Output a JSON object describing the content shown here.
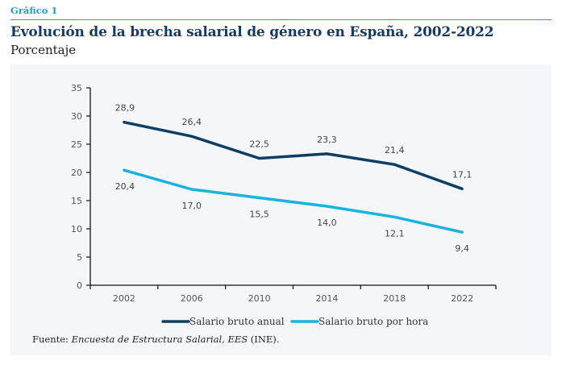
{
  "header": {
    "kicker": "Gráfico 1",
    "title": "Evolución de la brecha salarial de género en España, 2002-2022",
    "subtitle": "Porcentaje"
  },
  "source": {
    "prefix": "Fuente: ",
    "italic": "Encuesta de Estructura Salarial, EES",
    "suffix": " (INE)."
  },
  "colors": {
    "accent": "#1a9fcf",
    "title": "#173a5e",
    "series_annual": "#0d3f63",
    "series_hourly": "#1ab3dd",
    "panel_bg": "#f4f6f9"
  },
  "chart_data": {
    "type": "line",
    "title": "Evolución de la brecha salarial de género en España, 2002-2022",
    "subtitle": "Porcentaje",
    "xlabel": "",
    "ylabel": "",
    "categories": [
      "2002",
      "2006",
      "2010",
      "2014",
      "2018",
      "2022"
    ],
    "ylim": [
      0,
      35
    ],
    "yticks": [
      0,
      5,
      10,
      15,
      20,
      25,
      30,
      35
    ],
    "grid": false,
    "legend_position": "bottom",
    "series": [
      {
        "name": "Salario bruto anual",
        "color": "#0d3f63",
        "values": [
          28.9,
          26.4,
          22.5,
          23.3,
          21.4,
          17.1
        ],
        "labels": [
          "28,9",
          "26,4",
          "22,5",
          "23,3",
          "21,4",
          "17,1"
        ],
        "label_position": "above"
      },
      {
        "name": "Salario bruto por hora",
        "color": "#1ab3dd",
        "values": [
          20.4,
          17.0,
          15.5,
          14.0,
          12.1,
          9.4
        ],
        "labels": [
          "20,4",
          "17,0",
          "15,5",
          "14,0",
          "12,1",
          "9,4"
        ],
        "label_position": "below"
      }
    ]
  }
}
